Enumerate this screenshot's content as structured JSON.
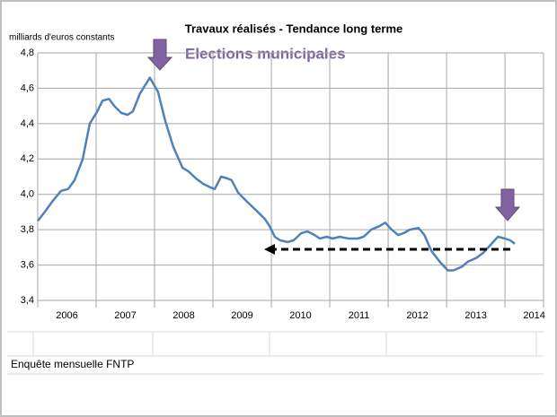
{
  "chart_data": {
    "type": "line",
    "title": "Travaux réalisés - Tendance long terme",
    "y_label": "milliards d'euros constants",
    "annotation": "Elections municipales",
    "source": "Enquête mensuelle FNTP",
    "color": "#4f81bd",
    "x": [
      2006.0,
      2006.12,
      2006.25,
      2006.4,
      2006.52,
      2006.63,
      2006.77,
      2006.89,
      2007.02,
      2007.11,
      2007.22,
      2007.31,
      2007.43,
      2007.54,
      2007.63,
      2007.75,
      2007.92,
      2008.06,
      2008.18,
      2008.32,
      2008.48,
      2008.58,
      2008.71,
      2008.83,
      2008.95,
      2009.03,
      2009.14,
      2009.25,
      2009.32,
      2009.43,
      2009.58,
      2009.74,
      2009.89,
      2009.97,
      2010.06,
      2010.15,
      2010.28,
      2010.38,
      2010.51,
      2010.62,
      2010.74,
      2010.83,
      2010.95,
      2011.05,
      2011.17,
      2011.32,
      2011.48,
      2011.58,
      2011.71,
      2011.85,
      2011.95,
      2012.06,
      2012.17,
      2012.26,
      2012.37,
      2012.52,
      2012.62,
      2012.74,
      2012.88,
      2013.02,
      2013.12,
      2013.26,
      2013.37,
      2013.51,
      2013.63,
      2013.77,
      2013.88,
      2014.0,
      2014.09,
      2014.17
    ],
    "values": [
      3.85,
      3.9,
      3.96,
      4.02,
      4.03,
      4.08,
      4.2,
      4.4,
      4.47,
      4.53,
      4.54,
      4.5,
      4.46,
      4.45,
      4.47,
      4.57,
      4.66,
      4.58,
      4.42,
      4.27,
      4.15,
      4.13,
      4.09,
      4.06,
      4.04,
      4.03,
      4.1,
      4.09,
      4.08,
      4.01,
      3.96,
      3.91,
      3.86,
      3.82,
      3.76,
      3.74,
      3.73,
      3.74,
      3.78,
      3.79,
      3.77,
      3.75,
      3.76,
      3.75,
      3.76,
      3.75,
      3.75,
      3.76,
      3.8,
      3.82,
      3.84,
      3.8,
      3.77,
      3.78,
      3.8,
      3.81,
      3.77,
      3.68,
      3.62,
      3.57,
      3.57,
      3.59,
      3.62,
      3.64,
      3.67,
      3.72,
      3.76,
      3.75,
      3.74,
      3.72
    ],
    "xlim": [
      2006,
      2014.66
    ],
    "xticks": [
      2006,
      2007,
      2008,
      2009,
      2010,
      2011,
      2012,
      2013,
      2014
    ],
    "ylim": [
      3.4,
      4.8
    ],
    "yticks": [
      {
        "value": 3.4,
        "label": "3,4"
      },
      {
        "value": 3.6,
        "label": "3,6"
      },
      {
        "value": 3.8,
        "label": "3,8"
      },
      {
        "value": 4.0,
        "label": "4,0"
      },
      {
        "value": 4.2,
        "label": "4,2"
      },
      {
        "value": 4.4,
        "label": "4,4"
      },
      {
        "value": 4.6,
        "label": "4,6"
      },
      {
        "value": 4.8,
        "label": "4,8"
      }
    ],
    "grid": true
  }
}
